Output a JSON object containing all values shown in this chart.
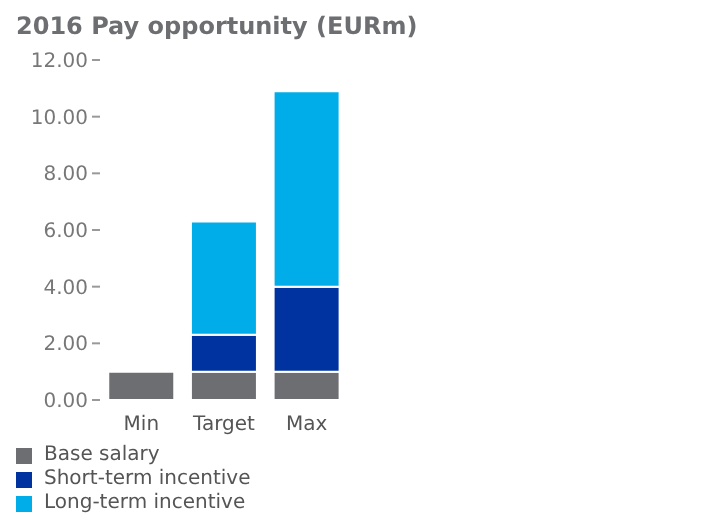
{
  "chart_data": {
    "type": "bar",
    "title": "2016 Pay opportunity (EURm)",
    "categories": [
      "Min",
      "Target",
      "Max"
    ],
    "stacked": true,
    "series": [
      {
        "name": "Base salary",
        "color": "#6d6e71",
        "values": [
          1.0,
          1.0,
          1.0
        ]
      },
      {
        "name": "Short-term incentive",
        "color": "#0033a0",
        "values": [
          null,
          1.3,
          3.0
        ]
      },
      {
        "name": "Long-term incentive",
        "color": "#00ade9",
        "values": [
          null,
          4.0,
          6.9
        ]
      }
    ],
    "ylim": [
      0,
      12
    ],
    "yticks": [
      {
        "value": 0,
        "label": "0.00"
      },
      {
        "value": 2,
        "label": "2.00"
      },
      {
        "value": 4,
        "label": "4.00"
      },
      {
        "value": 6,
        "label": "6.00"
      },
      {
        "value": 8,
        "label": "8.00"
      },
      {
        "value": 10,
        "label": "10.00"
      },
      {
        "value": 12,
        "label": "12.00"
      }
    ],
    "grid": false,
    "legend": "bottom left"
  }
}
